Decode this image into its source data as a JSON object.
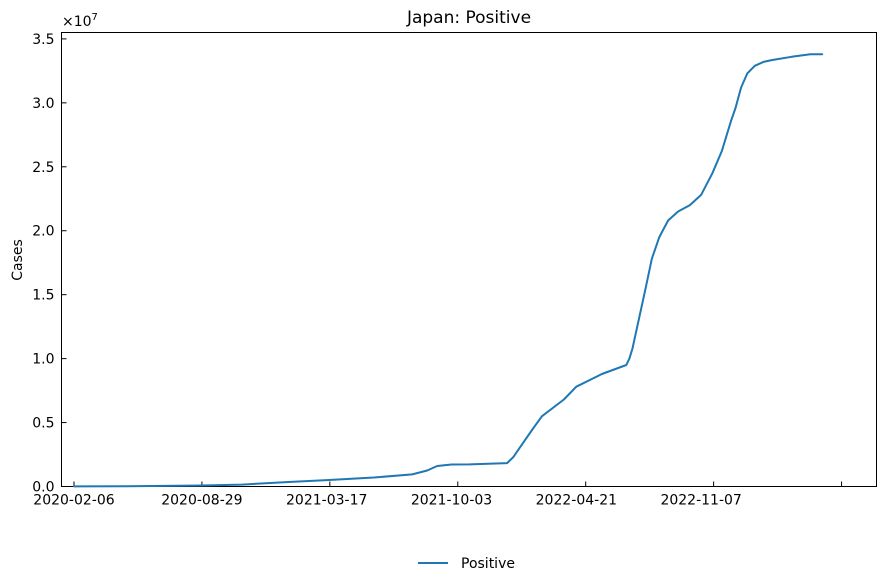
{
  "chart_data": {
    "type": "line",
    "title": "Japan: Positive",
    "xlabel": "",
    "ylabel": "Cases",
    "y_offset_label": "×10",
    "y_offset_exponent": "7",
    "ylim": [
      0,
      35500000
    ],
    "x_range": [
      "2020-01-17",
      "2023-08-15"
    ],
    "x_tick_labels": [
      "2020-02-06",
      "2020-08-29",
      "2021-03-17",
      "2021-10-03",
      "2022-04-21",
      "2022-11-07"
    ],
    "y_tick_labels": [
      "0.0",
      "0.5",
      "1.0",
      "1.5",
      "2.0",
      "2.5",
      "3.0",
      "3.5"
    ],
    "grid": false,
    "legend_position": "bottom-center",
    "line_color": "#1f77b4",
    "series": [
      {
        "name": "Positive",
        "x": [
          "2020-02-06",
          "2020-05-01",
          "2020-08-29",
          "2020-11-01",
          "2021-01-15",
          "2021-03-17",
          "2021-06-01",
          "2021-08-01",
          "2021-08-25",
          "2021-09-10",
          "2021-10-03",
          "2021-11-01",
          "2021-12-31",
          "2022-01-10",
          "2022-01-20",
          "2022-02-10",
          "2022-02-25",
          "2022-04-01",
          "2022-04-21",
          "2022-06-01",
          "2022-07-10",
          "2022-07-15",
          "2022-07-20",
          "2022-08-10",
          "2022-08-20",
          "2022-09-01",
          "2022-09-15",
          "2022-10-01",
          "2022-10-20",
          "2022-11-07",
          "2022-11-25",
          "2022-12-10",
          "2022-12-25",
          "2023-01-01",
          "2023-01-10",
          "2023-01-20",
          "2023-02-01",
          "2023-02-15",
          "2023-03-01",
          "2023-04-01",
          "2023-05-01",
          "2023-05-20"
        ],
        "y": [
          10000,
          20000,
          80000,
          150000,
          350000,
          500000,
          700000,
          950000,
          1250000,
          1600000,
          1720000,
          1730000,
          1830000,
          2300000,
          3000000,
          4500000,
          5500000,
          6800000,
          7800000,
          8800000,
          9500000,
          10000000,
          10800000,
          15500000,
          17800000,
          19500000,
          20800000,
          21500000,
          22000000,
          22800000,
          24500000,
          26200000,
          28600000,
          29600000,
          31200000,
          32300000,
          32900000,
          33200000,
          33350000,
          33600000,
          33800000,
          33800000
        ]
      }
    ]
  }
}
